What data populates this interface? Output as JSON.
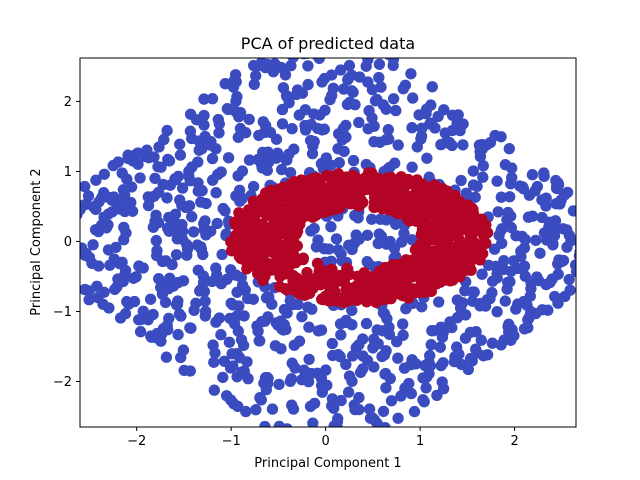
{
  "chart_data": {
    "type": "scatter",
    "title": "PCA of predicted data",
    "xlabel": "Principal Component 1",
    "ylabel": "Principal Component 2",
    "xlim": [
      -2.6,
      2.65
    ],
    "ylim": [
      -2.65,
      2.62
    ],
    "xticks": [
      -2,
      -1,
      0,
      1,
      2
    ],
    "yticks": [
      -2,
      -1,
      0,
      1,
      2
    ],
    "xtick_labels": [
      "−2",
      "−1",
      "0",
      "1",
      "2"
    ],
    "ytick_labels": [
      "−2",
      "−1",
      "0",
      "1",
      "2"
    ],
    "grid": false,
    "legend": "none",
    "series": [
      {
        "color": "#3b4cc0",
        "description": "outer diamond-shaped band and inner core",
        "point_count": 1000
      },
      {
        "color": "#b40426",
        "description": "ring between inner core and outer band",
        "point_count": 1000
      }
    ],
    "marker_radius_data": 0.06
  }
}
